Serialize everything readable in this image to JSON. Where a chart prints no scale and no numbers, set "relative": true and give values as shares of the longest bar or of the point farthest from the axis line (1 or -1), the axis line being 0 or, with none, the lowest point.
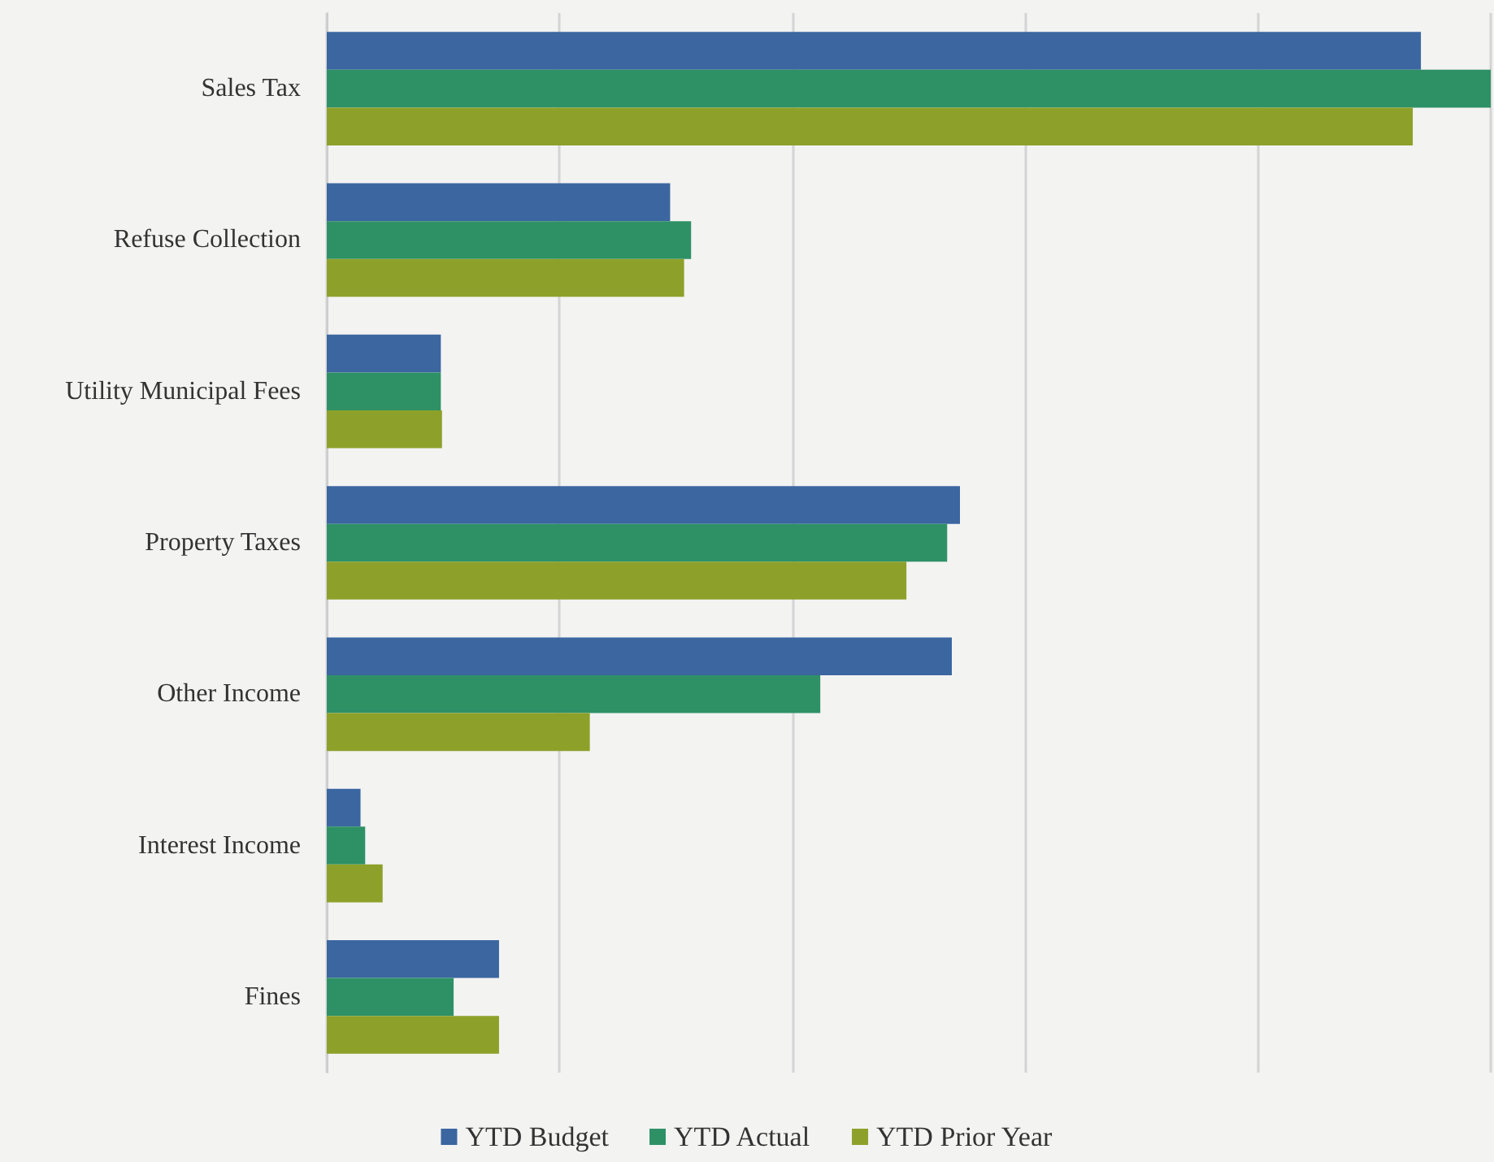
{
  "chart_data": {
    "type": "bar",
    "orientation": "horizontal",
    "relative": true,
    "grid": "x",
    "legend": "bottom",
    "categories": [
      "Sales Tax",
      "Refuse Collection",
      "Utility Municipal Fees",
      "Property Taxes",
      "Other Income",
      "Interest Income",
      "Fines"
    ],
    "series": [
      {
        "name": "YTD Budget",
        "color": "#3b66a0",
        "values": [
          0.94,
          0.295,
          0.098,
          0.544,
          0.537,
          0.029,
          0.148
        ]
      },
      {
        "name": "YTD Actual",
        "color": "#2e9166",
        "values": [
          1,
          0.313,
          0.098,
          0.533,
          0.424,
          0.033,
          0.109
        ]
      },
      {
        "name": "YTD Prior Year",
        "color": "#8da12a",
        "values": [
          0.933,
          0.307,
          0.099,
          0.498,
          0.226,
          0.048,
          0.148
        ]
      }
    ]
  }
}
